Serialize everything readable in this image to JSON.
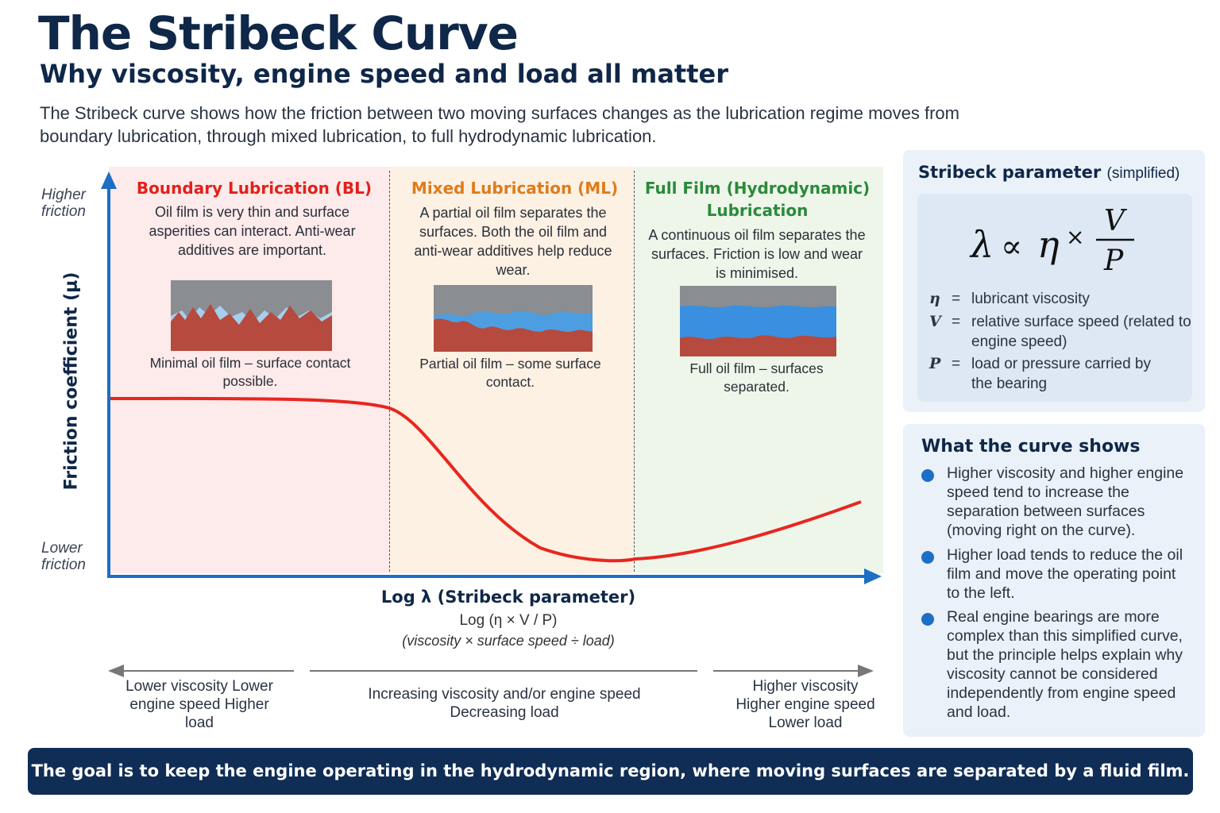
{
  "header": {
    "title": "The Stribeck Curve",
    "subtitle": "Why viscosity, engine speed and load all matter",
    "intro": "The Stribeck curve shows how the friction between two moving surfaces changes as the lubrication regime moves from boundary lubrication, through mixed lubrication, to full hydrodynamic lubrication."
  },
  "chart": {
    "y_high": "Higher friction",
    "y_low": "Lower friction",
    "y_title": "Friction coefficient (μ)",
    "x_title": "Log λ (Stribeck parameter)",
    "x_sub1": "Log (η × V / P)",
    "x_sub2": "(viscosity × surface speed ÷ load)",
    "curve_color": "#e8261f",
    "axis_color": "#1c6fc4"
  },
  "regions": {
    "boundary": {
      "title": "Boundary Lubrication (BL)",
      "color": "#e3201b",
      "desc": "Oil film is very thin and surface asperities can interact. Anti-wear additives are important.",
      "caption": "Minimal oil film – surface contact possible."
    },
    "mixed": {
      "title": "Mixed Lubrication (ML)",
      "color": "#e07b1a",
      "desc": "A partial oil film separates the surfaces. Both the oil film and anti-wear additives help reduce wear.",
      "caption": "Partial oil film – some surface contact."
    },
    "full": {
      "title": "Full Film (Hydrodynamic) Lubrication",
      "color": "#2a8a3a",
      "desc": "A continuous oil film separates the surfaces. Friction is low and wear is minimised.",
      "caption": "Full oil film – surfaces separated."
    }
  },
  "directions": {
    "left": "Lower viscosity Lower engine speed Higher load",
    "middle": "Increasing viscosity and/or engine speed Decreasing load",
    "right": "Higher viscosity Higher engine speed Lower load"
  },
  "stribeck_panel": {
    "title": "Stribeck parameter",
    "title_note": "(simplified)",
    "formula": "λ ∝ η × V / P",
    "variables": [
      {
        "symbol": "η",
        "eq": "=",
        "text": "lubricant viscosity"
      },
      {
        "symbol": "V",
        "eq": "=",
        "text": "relative surface speed (related to engine speed)"
      },
      {
        "symbol": "P",
        "eq": "=",
        "text": "load or pressure carried by the bearing"
      }
    ]
  },
  "curve_panel": {
    "title": "What the curve shows",
    "bullets": [
      "Higher viscosity and higher engine speed tend to increase the separation between surfaces (moving right on the curve).",
      "Higher load tends to reduce the oil film and move the operating point to the left.",
      "Real engine bearings are more complex than this simplified curve, but the principle helps explain why viscosity cannot be considered independently from engine speed and load."
    ]
  },
  "banner": "The goal is to keep the engine operating in the hydrodynamic region, where moving surfaces are separated by a fluid film."
}
